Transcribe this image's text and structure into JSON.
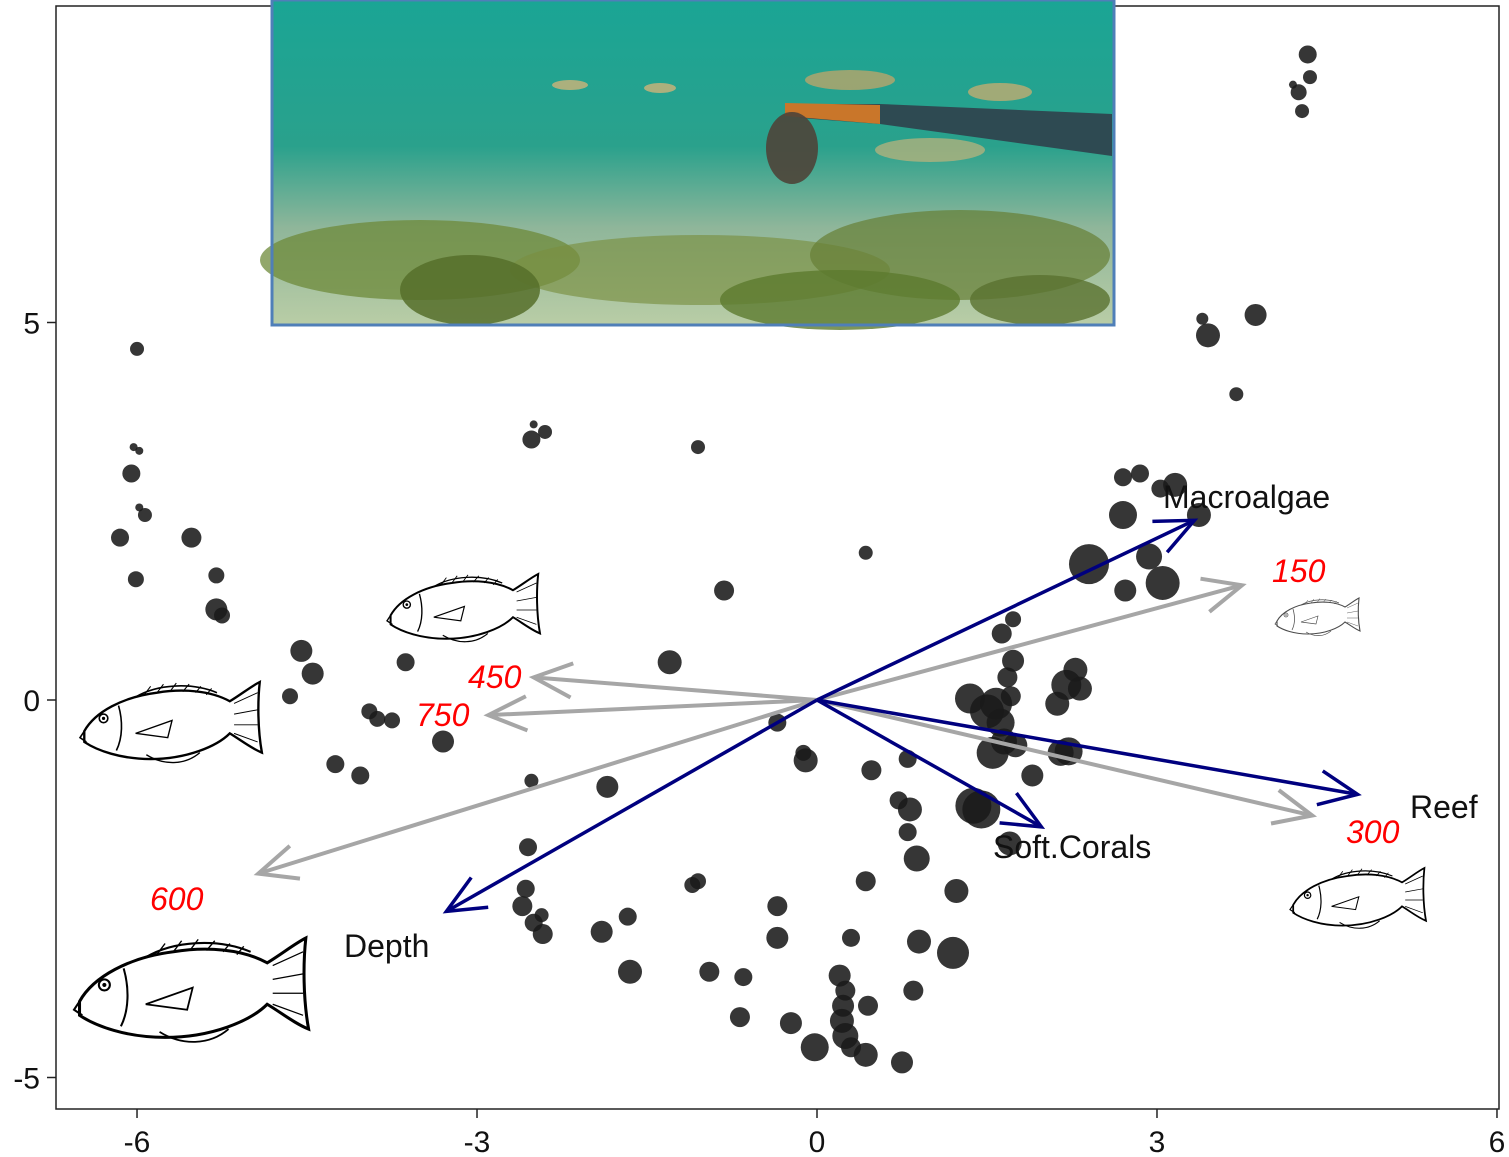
{
  "colors": {
    "vector": "#00007f",
    "size_vector": "#a6a6a6",
    "size_label": "#ff0000",
    "point": "#1a1a1a"
  },
  "chart_data": {
    "type": "scatter",
    "title": "",
    "xlabel": "",
    "ylabel": "",
    "xlim": [
      -6.7,
      6.1
    ],
    "ylim": [
      -5.45,
      9.2
    ],
    "grid": false,
    "x_ticks": [
      -6,
      -3,
      0,
      3,
      6
    ],
    "y_ticks": [
      -5,
      0,
      5
    ],
    "points": [
      {
        "x": 4.33,
        "y": 8.55,
        "r": 9
      },
      {
        "x": 4.35,
        "y": 8.25,
        "r": 7
      },
      {
        "x": 4.25,
        "y": 8.05,
        "r": 8
      },
      {
        "x": 4.28,
        "y": 7.8,
        "r": 7
      },
      {
        "x": 4.2,
        "y": 8.15,
        "r": 4
      },
      {
        "x": 3.45,
        "y": 4.83,
        "r": 12
      },
      {
        "x": 3.87,
        "y": 5.1,
        "r": 11
      },
      {
        "x": 3.4,
        "y": 5.05,
        "r": 6
      },
      {
        "x": 3.7,
        "y": 4.05,
        "r": 7
      },
      {
        "x": 2.7,
        "y": 2.95,
        "r": 9
      },
      {
        "x": 2.85,
        "y": 3.0,
        "r": 9
      },
      {
        "x": 3.03,
        "y": 2.8,
        "r": 9
      },
      {
        "x": 3.16,
        "y": 2.85,
        "r": 12
      },
      {
        "x": 2.7,
        "y": 2.45,
        "r": 14
      },
      {
        "x": 3.37,
        "y": 2.45,
        "r": 12
      },
      {
        "x": 2.4,
        "y": 1.8,
        "r": 20
      },
      {
        "x": 2.93,
        "y": 1.9,
        "r": 13
      },
      {
        "x": 3.05,
        "y": 1.55,
        "r": 17
      },
      {
        "x": 2.72,
        "y": 1.45,
        "r": 11
      },
      {
        "x": 0.43,
        "y": 1.95,
        "r": 7
      },
      {
        "x": -6.0,
        "y": 4.65,
        "r": 7
      },
      {
        "x": -6.03,
        "y": 3.35,
        "r": 4
      },
      {
        "x": -5.98,
        "y": 3.3,
        "r": 4
      },
      {
        "x": -6.05,
        "y": 3.0,
        "r": 9
      },
      {
        "x": -5.98,
        "y": 2.55,
        "r": 4
      },
      {
        "x": -5.93,
        "y": 2.45,
        "r": 7
      },
      {
        "x": -6.15,
        "y": 2.15,
        "r": 9
      },
      {
        "x": -5.52,
        "y": 2.15,
        "r": 10
      },
      {
        "x": -6.01,
        "y": 1.6,
        "r": 8
      },
      {
        "x": -5.3,
        "y": 1.65,
        "r": 8
      },
      {
        "x": -5.3,
        "y": 1.2,
        "r": 11
      },
      {
        "x": -5.25,
        "y": 1.12,
        "r": 8
      },
      {
        "x": -2.5,
        "y": 3.65,
        "r": 4
      },
      {
        "x": -2.4,
        "y": 3.55,
        "r": 7
      },
      {
        "x": -2.52,
        "y": 3.45,
        "r": 9
      },
      {
        "x": -1.05,
        "y": 3.35,
        "r": 7
      },
      {
        "x": -0.82,
        "y": 1.45,
        "r": 10
      },
      {
        "x": -4.55,
        "y": 0.65,
        "r": 11
      },
      {
        "x": -4.45,
        "y": 0.35,
        "r": 11
      },
      {
        "x": -4.65,
        "y": 0.05,
        "r": 8
      },
      {
        "x": -3.63,
        "y": 0.5,
        "r": 9
      },
      {
        "x": -1.3,
        "y": 0.5,
        "r": 12
      },
      {
        "x": -3.95,
        "y": -0.15,
        "r": 8
      },
      {
        "x": -3.88,
        "y": -0.25,
        "r": 8
      },
      {
        "x": -3.75,
        "y": -0.27,
        "r": 8
      },
      {
        "x": -3.3,
        "y": -0.55,
        "r": 11
      },
      {
        "x": -4.25,
        "y": -0.85,
        "r": 9
      },
      {
        "x": -4.03,
        "y": -1.0,
        "r": 9
      },
      {
        "x": -2.52,
        "y": -1.07,
        "r": 7
      },
      {
        "x": -1.85,
        "y": -1.15,
        "r": 11
      },
      {
        "x": -0.35,
        "y": -0.3,
        "r": 9
      },
      {
        "x": -0.12,
        "y": -0.7,
        "r": 8
      },
      {
        "x": -0.1,
        "y": -0.8,
        "r": 12
      },
      {
        "x": 0.48,
        "y": -0.93,
        "r": 10
      },
      {
        "x": 0.8,
        "y": -0.78,
        "r": 9
      },
      {
        "x": 0.72,
        "y": -1.33,
        "r": 9
      },
      {
        "x": 0.82,
        "y": -1.45,
        "r": 12
      },
      {
        "x": 0.8,
        "y": -1.75,
        "r": 9
      },
      {
        "x": 0.88,
        "y": -2.1,
        "r": 13
      },
      {
        "x": 0.43,
        "y": -2.4,
        "r": 10
      },
      {
        "x": 1.23,
        "y": -2.53,
        "r": 12
      },
      {
        "x": 1.38,
        "y": -1.4,
        "r": 18
      },
      {
        "x": 1.45,
        "y": -1.45,
        "r": 19
      },
      {
        "x": 1.7,
        "y": -1.9,
        "r": 12
      },
      {
        "x": 1.9,
        "y": -1.0,
        "r": 11
      },
      {
        "x": 1.63,
        "y": 0.88,
        "r": 10
      },
      {
        "x": 1.73,
        "y": 1.07,
        "r": 8
      },
      {
        "x": 1.73,
        "y": 0.52,
        "r": 11
      },
      {
        "x": 1.68,
        "y": 0.3,
        "r": 10
      },
      {
        "x": 1.71,
        "y": 0.05,
        "r": 10
      },
      {
        "x": 1.35,
        "y": 0.02,
        "r": 15
      },
      {
        "x": 1.5,
        "y": -0.15,
        "r": 17
      },
      {
        "x": 1.58,
        "y": -0.05,
        "r": 16
      },
      {
        "x": 1.62,
        "y": -0.3,
        "r": 14
      },
      {
        "x": 1.65,
        "y": -0.55,
        "r": 13
      },
      {
        "x": 1.55,
        "y": -0.7,
        "r": 16
      },
      {
        "x": 1.75,
        "y": -0.6,
        "r": 12
      },
      {
        "x": 2.2,
        "y": 0.2,
        "r": 15
      },
      {
        "x": 2.28,
        "y": 0.4,
        "r": 12
      },
      {
        "x": 2.32,
        "y": 0.15,
        "r": 12
      },
      {
        "x": 2.12,
        "y": -0.05,
        "r": 12
      },
      {
        "x": 2.15,
        "y": -0.7,
        "r": 13
      },
      {
        "x": 2.22,
        "y": -0.68,
        "r": 14
      },
      {
        "x": -2.55,
        "y": -1.95,
        "r": 9
      },
      {
        "x": -2.57,
        "y": -2.5,
        "r": 9
      },
      {
        "x": -2.6,
        "y": -2.73,
        "r": 10
      },
      {
        "x": -2.43,
        "y": -2.85,
        "r": 7
      },
      {
        "x": -2.5,
        "y": -2.95,
        "r": 9
      },
      {
        "x": -2.42,
        "y": -3.1,
        "r": 10
      },
      {
        "x": -1.9,
        "y": -3.07,
        "r": 11
      },
      {
        "x": -1.67,
        "y": -2.87,
        "r": 9
      },
      {
        "x": -1.65,
        "y": -3.6,
        "r": 12
      },
      {
        "x": -1.1,
        "y": -2.45,
        "r": 8
      },
      {
        "x": -1.05,
        "y": -2.4,
        "r": 8
      },
      {
        "x": -0.35,
        "y": -2.73,
        "r": 10
      },
      {
        "x": -0.35,
        "y": -3.15,
        "r": 11
      },
      {
        "x": 0.3,
        "y": -3.15,
        "r": 9
      },
      {
        "x": 0.9,
        "y": -3.2,
        "r": 12
      },
      {
        "x": 1.2,
        "y": -3.35,
        "r": 16
      },
      {
        "x": -0.95,
        "y": -3.6,
        "r": 10
      },
      {
        "x": -0.65,
        "y": -3.67,
        "r": 9
      },
      {
        "x": -0.68,
        "y": -4.2,
        "r": 10
      },
      {
        "x": -0.23,
        "y": -4.28,
        "r": 11
      },
      {
        "x": 0.2,
        "y": -3.65,
        "r": 11
      },
      {
        "x": 0.25,
        "y": -3.85,
        "r": 10
      },
      {
        "x": 0.23,
        "y": -4.05,
        "r": 11
      },
      {
        "x": 0.45,
        "y": -4.05,
        "r": 10
      },
      {
        "x": 0.22,
        "y": -4.25,
        "r": 12
      },
      {
        "x": 0.25,
        "y": -4.45,
        "r": 13
      },
      {
        "x": 0.3,
        "y": -4.6,
        "r": 10
      },
      {
        "x": 0.43,
        "y": -4.7,
        "r": 12
      },
      {
        "x": -0.02,
        "y": -4.6,
        "r": 14
      },
      {
        "x": 0.75,
        "y": -4.8,
        "r": 11
      },
      {
        "x": 0.85,
        "y": -3.85,
        "r": 10
      }
    ],
    "env_vectors": [
      {
        "name": "Macroalgae",
        "x": 3.33,
        "y": 2.38
      },
      {
        "name": "Reef",
        "x": 4.77,
        "y": -1.25
      },
      {
        "name": "Soft.Corals",
        "x": 1.98,
        "y": -1.68
      },
      {
        "name": "Depth",
        "x": -3.27,
        "y": -2.8
      }
    ],
    "size_vectors": [
      {
        "name": "150",
        "x": 3.75,
        "y": 1.52
      },
      {
        "name": "300",
        "x": 4.37,
        "y": -1.53
      },
      {
        "name": "450",
        "x": -2.5,
        "y": 0.3
      },
      {
        "name": "600",
        "x": -4.93,
        "y": -2.3
      },
      {
        "name": "750",
        "x": -2.9,
        "y": -0.2
      }
    ]
  }
}
